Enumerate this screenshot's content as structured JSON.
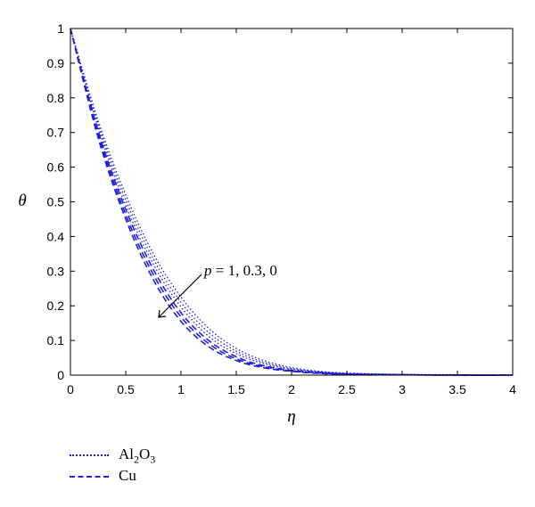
{
  "chart_data": {
    "type": "line",
    "xlabel": "η",
    "ylabel": "θ",
    "xlim": [
      0,
      4
    ],
    "ylim": [
      0,
      1
    ],
    "xticks": [
      "0",
      "0.5",
      "1",
      "1.5",
      "2",
      "2.5",
      "3",
      "3.5",
      "4"
    ],
    "yticks": [
      "0",
      "0.1",
      "0.2",
      "0.3",
      "0.4",
      "0.5",
      "0.6",
      "0.7",
      "0.8",
      "0.9",
      "1"
    ],
    "grid": false,
    "line_color": "#1f1fdc",
    "annotation": {
      "var": "p",
      "text": " = 1, 0.3, 0"
    },
    "legend": {
      "placement": "below-left",
      "entries": [
        {
          "parts": [
            "Al",
            "2",
            "O",
            "3"
          ],
          "style": "dotted"
        },
        {
          "parts": [
            "Cu"
          ],
          "style": "dashed"
        }
      ]
    },
    "series": [
      {
        "group": "Al2O3",
        "style": "dotted",
        "p": 1,
        "x": [
          0,
          0.25,
          0.5,
          0.75,
          1,
          1.25,
          1.5,
          1.75,
          2,
          2.25,
          2.5,
          3,
          3.5,
          4
        ],
        "y": [
          1,
          0.735,
          0.52,
          0.35,
          0.225,
          0.135,
          0.077,
          0.042,
          0.022,
          0.011,
          0.006,
          0.002,
          0.001,
          0
        ]
      },
      {
        "group": "Al2O3",
        "style": "dotted",
        "p": 0.3,
        "x": [
          0,
          0.25,
          0.5,
          0.75,
          1,
          1.25,
          1.5,
          1.75,
          2,
          2.25,
          2.5,
          3,
          3.5,
          4
        ],
        "y": [
          1,
          0.725,
          0.505,
          0.335,
          0.21,
          0.123,
          0.069,
          0.037,
          0.019,
          0.01,
          0.005,
          0.002,
          0.001,
          0
        ]
      },
      {
        "group": "Al2O3",
        "style": "dotted",
        "p": 0,
        "x": [
          0,
          0.25,
          0.5,
          0.75,
          1,
          1.25,
          1.5,
          1.75,
          2,
          2.25,
          2.5,
          3,
          3.5,
          4
        ],
        "y": [
          1,
          0.715,
          0.49,
          0.32,
          0.197,
          0.112,
          0.062,
          0.033,
          0.017,
          0.009,
          0.004,
          0.001,
          0,
          0
        ]
      },
      {
        "group": "Cu",
        "style": "dashed",
        "p": 1,
        "x": [
          0,
          0.25,
          0.5,
          0.75,
          1,
          1.25,
          1.5,
          1.75,
          2,
          2.25,
          2.5,
          3,
          3.5,
          4
        ],
        "y": [
          1,
          0.705,
          0.478,
          0.305,
          0.18,
          0.1,
          0.053,
          0.027,
          0.014,
          0.007,
          0.003,
          0.001,
          0,
          0
        ]
      },
      {
        "group": "Cu",
        "style": "dashed",
        "p": 0.3,
        "x": [
          0,
          0.25,
          0.5,
          0.75,
          1,
          1.25,
          1.5,
          1.75,
          2,
          2.25,
          2.5,
          3,
          3.5,
          4
        ],
        "y": [
          1,
          0.695,
          0.463,
          0.29,
          0.168,
          0.091,
          0.047,
          0.024,
          0.012,
          0.006,
          0.003,
          0.001,
          0,
          0
        ]
      },
      {
        "group": "Cu",
        "style": "dashed",
        "p": 0,
        "x": [
          0,
          0.25,
          0.5,
          0.75,
          1,
          1.25,
          1.5,
          1.75,
          2,
          2.25,
          2.5,
          3,
          3.5,
          4
        ],
        "y": [
          1,
          0.685,
          0.45,
          0.275,
          0.155,
          0.082,
          0.042,
          0.021,
          0.011,
          0.005,
          0.002,
          0.001,
          0,
          0
        ]
      }
    ]
  }
}
